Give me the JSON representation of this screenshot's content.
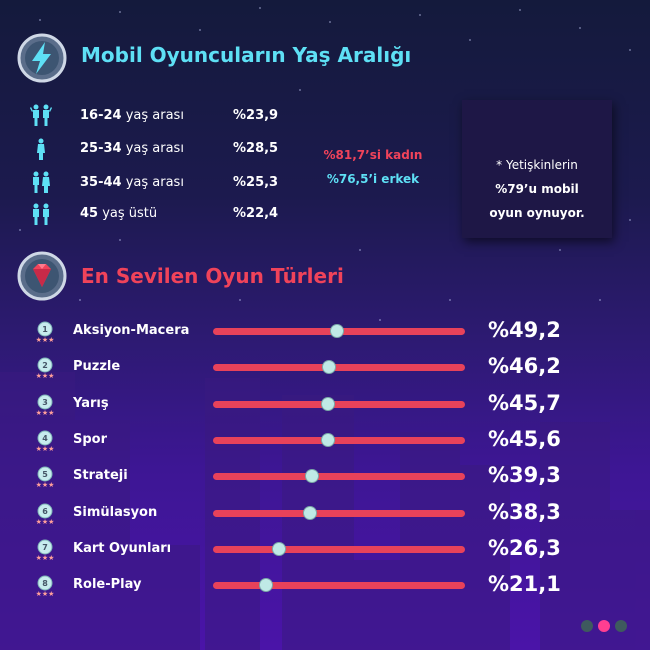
{
  "colors": {
    "bar": "#e8425a",
    "knob": "#bfe9e6",
    "title1": "#5ee0f5",
    "title2": "#f0435a",
    "women": "#f0435a",
    "men": "#5ee0f5",
    "person_icon": "#5ee0f5",
    "rank_badge": "#c7ecee",
    "rank_stars": "#ff9f9a",
    "dot_active": "#ff3e91",
    "dot_inactive": "#3e5a5e"
  },
  "age_section": {
    "title": "Mobil Oyuncuların Yaş Aralığı",
    "icon": "lightning-icon",
    "rows": [
      {
        "range": "16-24",
        "suffix": " yaş arası",
        "value": "%23,9",
        "icon": "person-icon"
      },
      {
        "range": "25-34",
        "suffix": " yaş arası",
        "value": "%28,5",
        "icon": "person-icon"
      },
      {
        "range": "35-44",
        "suffix": " yaş arası",
        "value": "%25,3",
        "icon": "person-icon"
      },
      {
        "range": "45",
        "suffix": " yaş üstü",
        "value": "%22,4",
        "icon": "person-icon"
      }
    ],
    "women": "%81,7’si kadın",
    "men": "%76,5’i erkek",
    "note": {
      "line1": "* Yetişkinlerin",
      "line2": "%79’u mobil",
      "line3": "oyun oynuyor."
    }
  },
  "genre_section": {
    "title": "En Sevilen Oyun Türleri",
    "icon": "gem-icon"
  },
  "chart_data": {
    "type": "bar",
    "orientation": "horizontal",
    "xlim": [
      0,
      100
    ],
    "categories": [
      "Aksiyon-Macera",
      "Puzzle",
      "Yarış",
      "Spor",
      "Strateji",
      "Simülasyon",
      "Kart Oyunları",
      "Role-Play"
    ],
    "ranks": [
      "1",
      "2",
      "3",
      "4",
      "5",
      "6",
      "7",
      "8"
    ],
    "values": [
      49.2,
      46.2,
      45.7,
      45.6,
      39.3,
      38.3,
      26.3,
      21.1
    ],
    "value_labels": [
      "%49,2",
      "%46,2",
      "%45,7",
      "%45,6",
      "%39,3",
      "%38,3",
      "%26,3",
      "%21,1"
    ]
  },
  "pagination": {
    "count": 3,
    "active": 2
  }
}
